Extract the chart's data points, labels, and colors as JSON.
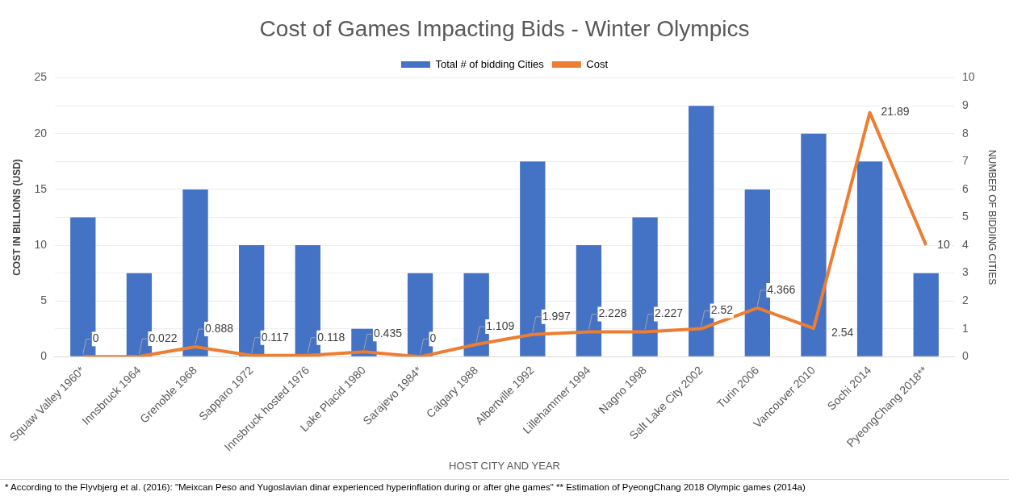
{
  "chart_data": {
    "type": "bar",
    "title": "Cost of Games Impacting Bids - Winter Olympics",
    "categories": [
      "Squaw Valley 1960*",
      "Innsbruck 1964",
      "Grenoble 1968",
      "Sapparo 1972",
      "Innsbruck hosted 1976",
      "Lake Placid 1980",
      "Sarajevo 1984*",
      "Calgary 1988",
      "Albertville 1992",
      "Lillehammer 1994",
      "Nagno 1998",
      "Salt Lake City 2002",
      "Turin 2006",
      "Vancouver 2010",
      "Sochi 2014",
      "PyeongChang 2018**"
    ],
    "series": [
      {
        "name": "Total # of bidding Cities",
        "axis": "y2",
        "color": "#4472c4",
        "values": [
          5,
          3,
          6,
          4,
          4,
          1,
          3,
          3,
          7,
          4,
          5,
          9,
          6,
          8,
          7,
          3
        ]
      },
      {
        "name": "Cost",
        "type": "line",
        "color": "#ed7d31",
        "values": [
          0,
          0.022,
          0.888,
          0.117,
          0.118,
          0.435,
          0,
          1.109,
          1.997,
          2.228,
          2.227,
          2.52,
          4.366,
          2.54,
          21.89,
          10
        ],
        "value_labels": [
          "0",
          "0.022",
          "0.888",
          "0.117",
          "0.118",
          "0.435",
          "0",
          "1.109",
          "1.997",
          "2.228",
          "2.227",
          "2.52",
          "4.366",
          "2.54",
          "21.89",
          "10"
        ]
      }
    ],
    "xlabel": "HOST CITY AND YEAR",
    "ylabel": "COST IN BILLIONS (USD)",
    "y2label": "NUMBER OF BIDDING CITIES",
    "ylim": [
      0,
      25
    ],
    "yticks": [
      0,
      5,
      10,
      15,
      20,
      25
    ],
    "y2lim": [
      0,
      10
    ],
    "y2ticks": [
      0,
      1,
      2,
      3,
      4,
      5,
      6,
      7,
      8,
      9,
      10
    ],
    "grid": true,
    "legend": "top",
    "marker": "none",
    "annotations": [
      "* According to the Flyvbjerg et al. (2016): \"Meixcan Peso and Yugoslavian dinar experienced hyperinflation during or after ghe games\"   ** Estimation of  PyeongChang 2018 Olympic games (2014a)"
    ]
  }
}
